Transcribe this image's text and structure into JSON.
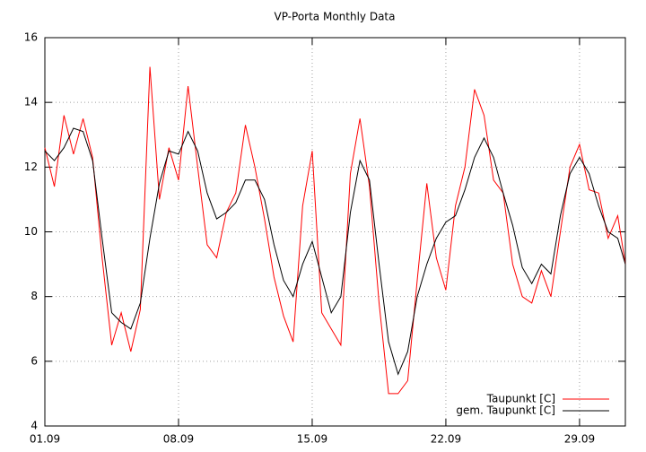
{
  "chart_data": {
    "type": "line",
    "title": "VP-Porta Monthly Data",
    "x": [
      1,
      1.5,
      2,
      2.5,
      3,
      3.5,
      4,
      4.5,
      5,
      5.5,
      6,
      6.5,
      7,
      7.5,
      8,
      8.5,
      9,
      9.5,
      10,
      10.5,
      11,
      11.5,
      12,
      12.5,
      13,
      13.5,
      14,
      14.5,
      15,
      15.5,
      16,
      16.5,
      17,
      17.5,
      18,
      18.5,
      19,
      19.5,
      20,
      20.5,
      21,
      21.5,
      22,
      22.5,
      23,
      23.5,
      24,
      24.5,
      25,
      25.5,
      26,
      26.5,
      27,
      27.5,
      28,
      28.5,
      29,
      29.5,
      30,
      30.5,
      31,
      31.4
    ],
    "series": [
      {
        "name": "Taupunkt [C]",
        "color": "#ff0000",
        "values": [
          12.6,
          11.4,
          13.6,
          12.4,
          13.5,
          12.3,
          9.2,
          6.5,
          7.5,
          6.3,
          7.6,
          15.1,
          11.0,
          12.6,
          11.6,
          14.5,
          12.0,
          9.6,
          9.2,
          10.6,
          11.2,
          13.3,
          12.0,
          10.4,
          8.6,
          7.4,
          6.6,
          10.8,
          12.5,
          7.5,
          7.0,
          6.5,
          11.8,
          13.5,
          11.4,
          7.8,
          5.0,
          5.0,
          5.4,
          8.5,
          11.5,
          9.2,
          8.2,
          10.8,
          12.0,
          14.4,
          13.6,
          11.6,
          11.2,
          9.0,
          8.0,
          7.8,
          8.8,
          8.0,
          10.0,
          12.0,
          12.7,
          11.3,
          11.2,
          9.8,
          10.5,
          9.0
        ]
      },
      {
        "name": "gem. Taupunkt [C]",
        "color": "#000000",
        "values": [
          12.5,
          12.2,
          12.6,
          13.2,
          13.1,
          12.2,
          9.8,
          7.5,
          7.2,
          7.0,
          7.8,
          9.8,
          11.5,
          12.5,
          12.4,
          13.1,
          12.5,
          11.2,
          10.4,
          10.6,
          10.9,
          11.6,
          11.6,
          11.0,
          9.6,
          8.5,
          8.0,
          9.0,
          9.7,
          8.6,
          7.5,
          8.0,
          10.6,
          12.2,
          11.6,
          9.0,
          6.6,
          5.6,
          6.3,
          8.0,
          9.0,
          9.8,
          10.3,
          10.5,
          11.3,
          12.3,
          12.9,
          12.3,
          11.2,
          10.2,
          8.9,
          8.4,
          9.0,
          8.7,
          10.5,
          11.8,
          12.3,
          11.8,
          10.8,
          10.0,
          9.8,
          9.0
        ]
      }
    ],
    "xlim": [
      1,
      31.4
    ],
    "xticks": [
      {
        "value": 1,
        "label": "01.09"
      },
      {
        "value": 8,
        "label": "08.09"
      },
      {
        "value": 15,
        "label": "15.09"
      },
      {
        "value": 22,
        "label": "22.09"
      },
      {
        "value": 29,
        "label": "29.09"
      }
    ],
    "ylim": [
      4,
      16
    ],
    "yticks": [
      4,
      6,
      8,
      10,
      12,
      14,
      16
    ],
    "grid": true,
    "legend": "bottom-right"
  }
}
